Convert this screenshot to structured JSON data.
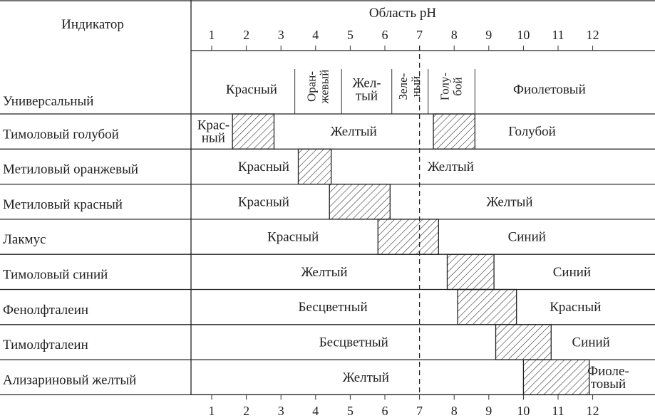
{
  "header": {
    "indicator_label": "Индикатор",
    "ph_label": "Область pH"
  },
  "ph_ticks": [
    1,
    2,
    3,
    4,
    5,
    6,
    7,
    8,
    9,
    10,
    11,
    12
  ],
  "universal": {
    "name": "Универсальный",
    "zones": [
      {
        "from": 0.9,
        "to": 3.4,
        "text": "Красный",
        "vertical": false
      },
      {
        "from": 3.4,
        "to": 4.75,
        "text": "Оран-\nжевый",
        "vertical": true
      },
      {
        "from": 4.75,
        "to": 6.2,
        "text": "Жел-\nтый",
        "vertical": false
      },
      {
        "from": 6.2,
        "to": 7.25,
        "text": "Зеле-\nный",
        "vertical": true
      },
      {
        "from": 7.25,
        "to": 8.6,
        "text": "Голу-\nбой",
        "vertical": true
      },
      {
        "from": 8.6,
        "to": 12.9,
        "text": "Фиолетовый",
        "vertical": false
      }
    ]
  },
  "indicators": [
    {
      "name": "Тимоловый голубой",
      "transitions": [
        [
          1.6,
          2.8
        ],
        [
          7.4,
          8.6
        ]
      ],
      "labels": [
        {
          "at": 1.05,
          "text": "Крас-\nный"
        },
        {
          "at": 5.1,
          "text": "Желтый"
        },
        {
          "at": 10.25,
          "text": "Голубой"
        }
      ]
    },
    {
      "name": "Метиловый оранжевый",
      "transitions": [
        [
          3.5,
          4.45
        ]
      ],
      "labels": [
        {
          "at": 2.5,
          "text": "Красный"
        },
        {
          "at": 7.9,
          "text": "Желтый"
        }
      ]
    },
    {
      "name": "Метиловый красный",
      "transitions": [
        [
          4.4,
          6.15
        ]
      ],
      "labels": [
        {
          "at": 2.5,
          "text": "Красный"
        },
        {
          "at": 9.6,
          "text": "Желтый"
        }
      ]
    },
    {
      "name": "Лакмус",
      "transitions": [
        [
          5.8,
          7.55
        ]
      ],
      "labels": [
        {
          "at": 3.35,
          "text": "Красный"
        },
        {
          "at": 10.1,
          "text": "Синий"
        }
      ]
    },
    {
      "name": "Тимоловый синий",
      "transitions": [
        [
          7.8,
          9.15
        ]
      ],
      "labels": [
        {
          "at": 4.25,
          "text": "Желтый"
        },
        {
          "at": 11.4,
          "text": "Синий"
        }
      ]
    },
    {
      "name": "Фенолфталеин",
      "transitions": [
        [
          8.1,
          9.8
        ]
      ],
      "labels": [
        {
          "at": 4.5,
          "text": "Бесцветный"
        },
        {
          "at": 11.5,
          "text": "Красный"
        }
      ]
    },
    {
      "name": "Тимолфталеин",
      "transitions": [
        [
          9.2,
          10.8
        ]
      ],
      "labels": [
        {
          "at": 5.1,
          "text": "Бесцветный"
        },
        {
          "at": 11.95,
          "text": "Синий"
        }
      ]
    },
    {
      "name": "Ализариновый желтый",
      "transitions": [
        [
          10.0,
          11.9
        ]
      ],
      "labels": [
        {
          "at": 5.45,
          "text": "Желтый"
        },
        {
          "at": 12.45,
          "text": "Фиоле-\nтовый"
        }
      ]
    }
  ]
}
